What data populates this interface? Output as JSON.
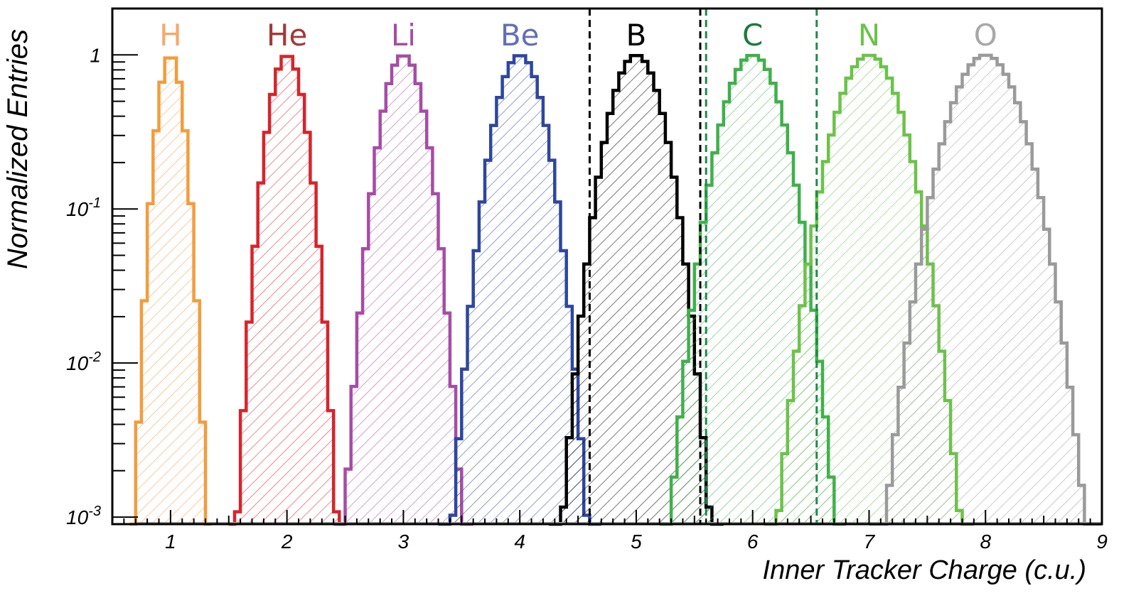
{
  "chart_data": {
    "type": "area",
    "xlabel": "Inner Tracker Charge (c.u.)",
    "ylabel": "Normalized Entries",
    "xlim": [
      0.5,
      9
    ],
    "ylim": [
      0.0009,
      2
    ],
    "y_scale": "log",
    "x_ticks": [
      "1",
      "2",
      "3",
      "4",
      "5",
      "6",
      "7",
      "8",
      "9"
    ],
    "y_ticks": [
      {
        "value": 1,
        "base": "1",
        "exp": ""
      },
      {
        "value": 0.1,
        "base": "10",
        "exp": "-1"
      },
      {
        "value": 0.01,
        "base": "10",
        "exp": "-2"
      },
      {
        "value": 0.001,
        "base": "10",
        "exp": "-3"
      }
    ],
    "grid": false,
    "series": [
      {
        "name": "H",
        "center": 1,
        "sigma": 0.083,
        "color": "#f39c3d"
      },
      {
        "name": "He",
        "center": 2,
        "sigma": 0.115,
        "color": "#d7242b"
      },
      {
        "name": "Li",
        "center": 3,
        "sigma": 0.135,
        "color": "#a64ca6"
      },
      {
        "name": "Be",
        "center": 4,
        "sigma": 0.155,
        "color": "#2d46a0"
      },
      {
        "name": "B",
        "center": 5,
        "sigma": 0.17,
        "color": "#000000"
      },
      {
        "name": "C",
        "center": 6,
        "sigma": 0.19,
        "color": "#3fb04b"
      },
      {
        "name": "N",
        "center": 7,
        "sigma": 0.21,
        "color": "#6cc24a"
      },
      {
        "name": "O",
        "center": 8,
        "sigma": 0.23,
        "color": "#9a9a9a"
      }
    ],
    "label_colors": {
      "H": "#f5a96a",
      "He": "#a3393a",
      "Li": "#a64ca6",
      "Be": "#6470b3",
      "B": "#000000",
      "C": "#1d7a3e",
      "N": "#6cc24a",
      "O": "#a8a8a8"
    },
    "cut_lines": [
      {
        "x": 4.6,
        "color": "#000000"
      },
      {
        "x": 5.55,
        "color": "#000000"
      },
      {
        "x": 5.6,
        "color": "#1d8a4a"
      },
      {
        "x": 6.55,
        "color": "#1d8a4a"
      }
    ]
  }
}
